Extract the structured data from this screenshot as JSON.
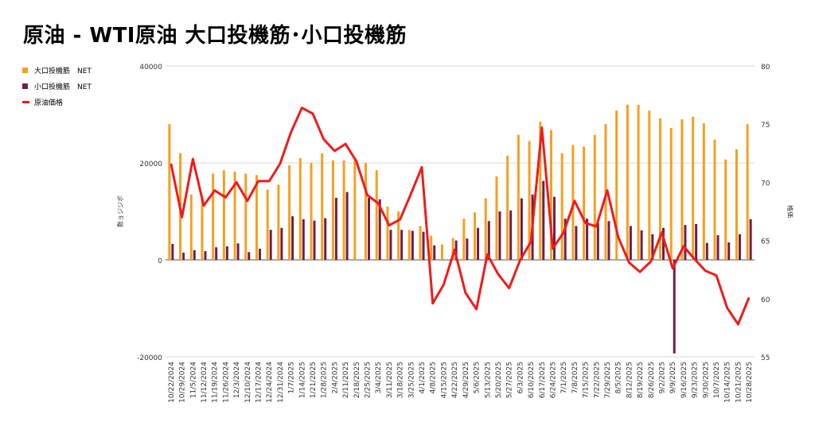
{
  "title": "原油 - WTI原油 大口投機筋･小口投機筋",
  "colors": {
    "large": "#f5a020",
    "small": "#6e1f4b",
    "price": "#ee1c1c",
    "grid": "#d9d9d9"
  },
  "legend": {
    "large": "大口投機筋　NET",
    "small": "小口投機筋　NET",
    "price": "原油価格"
  },
  "chart_data": {
    "type": "bar",
    "x": [
      "10/22/2024",
      "10/29/2024",
      "11/5/2024",
      "11/12/2024",
      "11/19/2024",
      "11/26/2024",
      "12/3/2024",
      "12/10/2024",
      "12/17/2024",
      "12/24/2024",
      "12/31/2024",
      "1/7/2025",
      "1/14/2025",
      "1/21/2025",
      "1/28/2025",
      "2/4/2025",
      "2/11/2025",
      "2/18/2025",
      "2/25/2025",
      "3/4/2025",
      "3/11/2025",
      "3/18/2025",
      "3/25/2025",
      "4/1/2025",
      "4/8/2025",
      "4/15/2025",
      "4/22/2025",
      "4/29/2025",
      "5/6/2025",
      "5/13/2025",
      "5/20/2025",
      "5/27/2025",
      "6/3/2025",
      "6/10/2025",
      "6/17/2025",
      "6/24/2025",
      "7/1/2025",
      "7/8/2025",
      "7/15/2025",
      "7/22/2025",
      "7/29/2025",
      "8/5/2025",
      "8/12/2025",
      "8/19/2025",
      "8/26/2025",
      "9/2/2025",
      "9/9/2025",
      "9/16/2025",
      "9/23/2025",
      "9/30/2025",
      "10/7/2025",
      "10/14/2025",
      "10/21/2025",
      "10/28/2025"
    ],
    "series": [
      {
        "name": "大口投機筋　NET",
        "type": "bar",
        "axis": "left",
        "values": [
          28000,
          22000,
          13500,
          13200,
          17800,
          18500,
          18200,
          17800,
          17500,
          14500,
          15500,
          19500,
          21000,
          20000,
          22000,
          20500,
          20500,
          20500,
          20000,
          18500,
          11000,
          10000,
          6200,
          7000,
          5000,
          3200,
          4500,
          8500,
          9800,
          12700,
          17200,
          21500,
          25800,
          24500,
          28500,
          26800,
          22000,
          23700,
          23400,
          25800,
          28000,
          30800,
          32000,
          32000,
          30800,
          29200,
          27200,
          29000,
          29500,
          28200,
          24800,
          20700,
          22800,
          28000
        ]
      },
      {
        "name": "小口投機筋　NET",
        "type": "bar",
        "axis": "left",
        "values": [
          3300,
          1500,
          2000,
          1800,
          2600,
          2800,
          3400,
          1600,
          2300,
          6200,
          6600,
          9000,
          8400,
          8100,
          8600,
          12800,
          14000,
          null,
          12800,
          12500,
          6200,
          6200,
          6000,
          5800,
          3000,
          null,
          4000,
          4400,
          6600,
          8000,
          10000,
          10200,
          12700,
          13500,
          16300,
          13000,
          8500,
          7000,
          8500,
          7600,
          8000,
          null,
          7000,
          6100,
          5300,
          6600,
          -19300,
          7200,
          7400,
          3500,
          5100,
          3600,
          5300,
          8400
        ]
      },
      {
        "name": "原油価格",
        "type": "line",
        "axis": "right",
        "values": [
          71.6,
          67.0,
          72.0,
          68.0,
          69.3,
          68.7,
          70.0,
          68.4,
          70.1,
          70.1,
          71.6,
          74.3,
          76.4,
          75.9,
          73.7,
          72.7,
          73.3,
          71.8,
          68.9,
          68.2,
          66.3,
          66.8,
          69.0,
          71.3,
          59.6,
          61.2,
          64.2,
          60.5,
          59.1,
          63.8,
          62.1,
          60.9,
          63.3,
          64.9,
          74.7,
          64.3,
          65.7,
          68.4,
          66.5,
          66.2,
          69.3,
          65.3,
          63.1,
          62.3,
          63.2,
          65.7,
          62.6,
          64.5,
          63.4,
          62.4,
          62.0,
          59.2,
          57.8,
          60.1
        ]
      }
    ],
    "yaxis_left": {
      "label": "数ョジジポ",
      "range": [
        -20000,
        40000
      ],
      "ticks": [
        -20000,
        0,
        20000,
        40000
      ]
    },
    "yaxis_right": {
      "label": "格価",
      "range": [
        55,
        80
      ],
      "ticks": [
        55,
        60,
        65,
        70,
        75,
        80
      ]
    },
    "grid": true,
    "legend_position": "top-left"
  }
}
